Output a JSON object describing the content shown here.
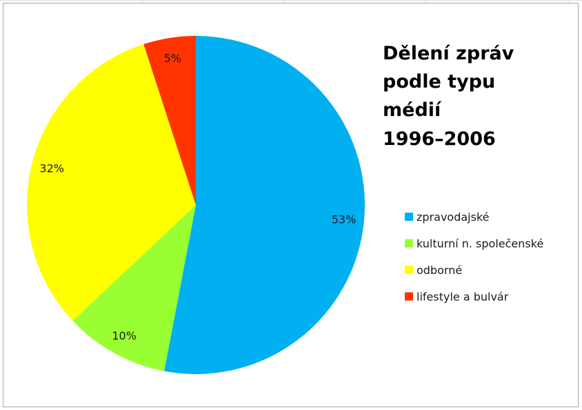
{
  "chart_data": {
    "type": "pie",
    "title": "Dělení zpráv podle typu médií 1996–2006",
    "title_lines": [
      "Dělení zpráv",
      "podle typu",
      "médií",
      "1996–2006"
    ],
    "categories": [
      "zpravodajské",
      "kulturní n. společenské",
      "odborné",
      "lifestyle a bulvár"
    ],
    "values": [
      53,
      10,
      32,
      5
    ],
    "value_labels": [
      "53%",
      "10%",
      "32%",
      "5%"
    ],
    "colors": [
      "#00b0f0",
      "#99ff33",
      "#ffff00",
      "#ff3300"
    ],
    "legend_position": "right",
    "start_angle": "top, clockwise"
  }
}
